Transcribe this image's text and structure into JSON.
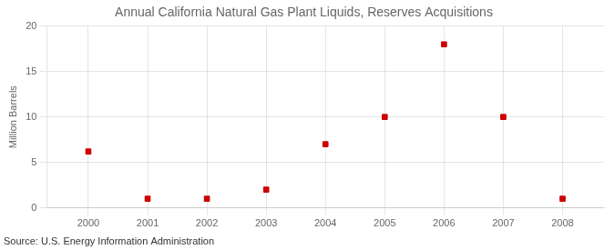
{
  "chart_data": {
    "type": "scatter",
    "title": "Annual California Natural Gas Plant Liquids, Reserves Acquisitions",
    "ylabel": "Million Barrels",
    "source": "Source: U.S. Energy Information Administration",
    "x": [
      2000,
      2001,
      2002,
      2003,
      2004,
      2005,
      2006,
      2007,
      2008
    ],
    "values": [
      6.2,
      1.0,
      1.0,
      2.0,
      7.0,
      10.0,
      18.0,
      10.0,
      1.0
    ],
    "xlim": [
      1999.3,
      2008.7
    ],
    "xticks": [
      2000,
      2001,
      2002,
      2003,
      2004,
      2005,
      2006,
      2007,
      2008
    ],
    "ylim": [
      0,
      20
    ],
    "yticks": [
      0,
      5,
      10,
      15,
      20
    ],
    "color": "#cc0000",
    "marker": "square",
    "line_style": "none",
    "grid": true
  }
}
